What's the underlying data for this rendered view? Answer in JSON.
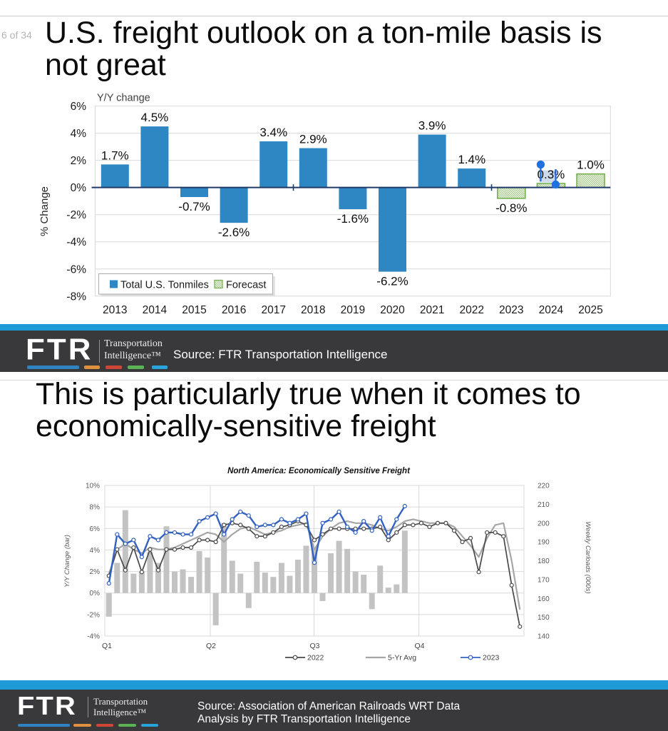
{
  "page": {
    "page_indicator": "6 of 34"
  },
  "brand": {
    "logo_text": "FTR",
    "tagline_line1": "Transportation",
    "tagline_line2": "Intelligence™",
    "stripe_color": "#1e9ad6",
    "band_color": "#39393b",
    "dash_colors": [
      "#2f83c0",
      "#e0913f",
      "#cf4637",
      "#5cb356",
      "#28a5dc"
    ]
  },
  "slide1": {
    "title_line1": "U.S. freight outlook on a ton-mile basis is",
    "title_line2": "not great",
    "source_text": "Source: FTR Transportation Intelligence"
  },
  "slide2": {
    "title_line1": "This is particularly true when it comes to",
    "title_line2": "economically-sensitive freight",
    "source_line1": "Source: Association of American Railroads WRT Data",
    "source_line2": "Analysis by FTR Transportation Intelligence"
  },
  "chart_data": [
    {
      "type": "bar",
      "title": "Y/Y change",
      "ylabel": "% Change",
      "categories": [
        "2013",
        "2014",
        "2015",
        "2016",
        "2017",
        "2018",
        "2019",
        "2020",
        "2021",
        "2022",
        "2023",
        "2024",
        "2025"
      ],
      "series": [
        {
          "name": "Total U.S. Tonmiles",
          "style": "solid",
          "color": "#2e86c3",
          "values": [
            1.7,
            4.5,
            -0.7,
            -2.6,
            3.4,
            2.9,
            -1.6,
            -6.2,
            3.9,
            1.4,
            null,
            null,
            null
          ]
        },
        {
          "name": "Forecast",
          "style": "hatched",
          "color": "#70ad47",
          "values": [
            null,
            null,
            null,
            null,
            null,
            null,
            null,
            null,
            null,
            null,
            -0.8,
            0.3,
            1.0
          ]
        }
      ],
      "data_labels": [
        "1.7%",
        "4.5%",
        "-0.7%",
        "-2.6%",
        "3.4%",
        "2.9%",
        "-1.6%",
        "-6.2%",
        "3.9%",
        "1.4%",
        "-0.8%",
        "0.3%",
        "1.0%"
      ],
      "ylim": [
        -8,
        6
      ],
      "ytick_labels": [
        "6%",
        "4%",
        "2%",
        "0%",
        "-2%",
        "-4%",
        "-6%",
        "-8%"
      ],
      "grid": true,
      "legend_position": "bottom-left-inside",
      "zero_line_color": "#1f3a67",
      "selection": {
        "selected_label": "0.3%",
        "selected_category": "2024",
        "handle_color": "#2170e0",
        "highlight_color": "#c9d7e9"
      }
    },
    {
      "type": "combo",
      "title": "North America: Economically Sensitive Freight",
      "ylabel_left": "Y/Y Change (bar)",
      "ylabel_right": "Weekly Carloads (000s)",
      "x_quarter_labels": [
        "Q1",
        "Q2",
        "Q3",
        "Q4"
      ],
      "ylim_left": [
        -4,
        10
      ],
      "ytick_labels_left": [
        "10%",
        "8%",
        "6%",
        "4%",
        "2%",
        "0%",
        "-2%",
        "-4%"
      ],
      "ylim_right": [
        140,
        220
      ],
      "ytick_labels_right": [
        "220",
        "210",
        "200",
        "190",
        "180",
        "170",
        "160",
        "150",
        "140"
      ],
      "weeks_total": 51,
      "bars": {
        "name": "Y/Y Change (bar)",
        "color": "#c3c3c3",
        "axis": "left",
        "values_pct": [
          -2.2,
          2.8,
          7.7,
          1.8,
          2.0,
          3.8,
          2.8,
          6.2,
          2.0,
          2.2,
          1.5,
          3.9,
          3.3,
          -3.0,
          6.5,
          3.0,
          1.8,
          -1.4,
          2.9,
          1.9,
          1.5,
          2.8,
          1.6,
          3.1,
          4.4,
          4.2,
          -0.75,
          3.7,
          4.85,
          4.1,
          2.0,
          1.7,
          -1.5,
          2.55,
          0.5,
          0.8,
          5.8
        ]
      },
      "series": [
        {
          "name": "2022",
          "color": "#4a4a4a",
          "markers": true,
          "axis": "right",
          "values": [
            172,
            186,
            175,
            187,
            174,
            186,
            175,
            186,
            186,
            187,
            187,
            191,
            191,
            190,
            199,
            200,
            199,
            197,
            193,
            193,
            195,
            198,
            199,
            201,
            199,
            191,
            194,
            197,
            197,
            197,
            197,
            197,
            197,
            198,
            191,
            195,
            199,
            199,
            200,
            198,
            200,
            200,
            196,
            190,
            192,
            174,
            195,
            195,
            193,
            167,
            145
          ]
        },
        {
          "name": "5-Yr Avg",
          "color": "#a6a6a6",
          "markers": false,
          "axis": "right",
          "values": [
            173,
            186,
            189,
            186,
            184,
            187,
            186,
            186,
            187,
            189,
            191,
            193,
            195,
            194,
            190,
            194,
            197,
            198,
            196,
            194,
            195,
            196,
            198,
            199,
            200,
            186,
            193,
            197,
            200,
            201,
            200,
            200,
            199,
            197,
            196,
            198,
            201,
            202,
            201,
            200,
            200,
            200,
            198,
            193,
            188,
            182,
            192,
            199,
            200,
            180,
            154
          ]
        },
        {
          "name": "2023",
          "color": "#3261c1",
          "markers": true,
          "axis": "right",
          "values": [
            168,
            194,
            189,
            191,
            182,
            193,
            191,
            195,
            195,
            194,
            194,
            201,
            203,
            205,
            194,
            202,
            206,
            204,
            198,
            199,
            199,
            202,
            200,
            202,
            205,
            179,
            200,
            202,
            206,
            198,
            195,
            201,
            196,
            203,
            193,
            202,
            209
          ]
        }
      ],
      "grid": true,
      "legend_position": "bottom-center"
    }
  ]
}
